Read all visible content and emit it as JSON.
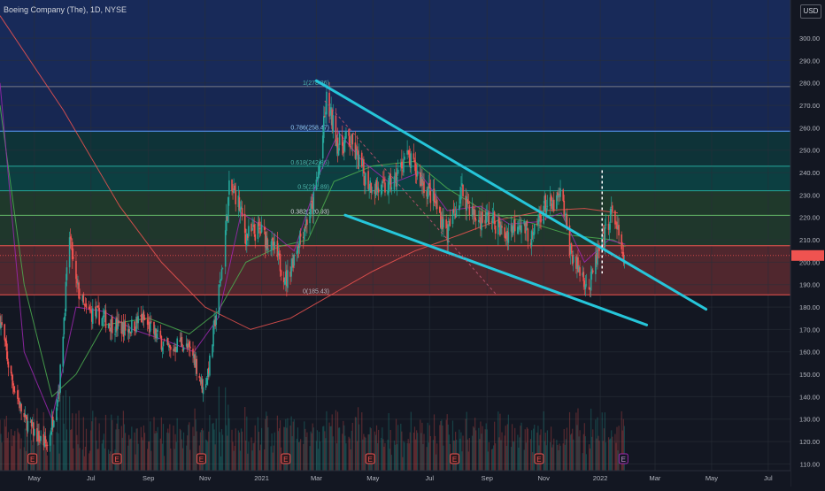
{
  "header": {
    "title": "Boeing Company (The), 1D, NYSE",
    "currency": "USD"
  },
  "colors": {
    "background": "#131722",
    "trendline": "#26c6da",
    "up": "#26a69a",
    "down": "#ef5350",
    "sma_long": "#ef5350",
    "sma_mid": "#4caf50",
    "sma_short": "#9c27b0",
    "price_badge": "#ef5350"
  },
  "chart_data": {
    "type": "candlestick",
    "symbol": "BA",
    "interval": "1D",
    "exchange": "NYSE",
    "x_tick_labels": [
      "May",
      "Jul",
      "Sep",
      "Nov",
      "2021",
      "Mar",
      "May",
      "Jul",
      "Sep",
      "Nov",
      "2022",
      "Mar",
      "May",
      "Jul"
    ],
    "y_tick_labels": [
      110,
      120,
      130,
      140,
      150,
      160,
      170,
      180,
      190,
      200,
      210,
      220,
      230,
      240,
      250,
      260,
      270,
      280,
      290,
      300
    ],
    "y_range": [
      107,
      317
    ],
    "x_range": [
      "2020-03-25",
      "2022-07-25"
    ],
    "last_price": 203.0,
    "fibonacci": [
      {
        "ratio": "1",
        "price": 278.36,
        "label": "1(278.36)"
      },
      {
        "ratio": "0.786",
        "price": 258.47,
        "label": "0.786(258.47)"
      },
      {
        "ratio": "0.618",
        "price": 242.86,
        "label": "0.618(242.86)"
      },
      {
        "ratio": "0.5",
        "price": 231.89,
        "label": "0.5(231.89)"
      },
      {
        "ratio": "0.382",
        "price": 220.93,
        "label": "0.382(220.93)"
      },
      {
        "ratio": "0.236",
        "price": 207.36,
        "label": ""
      },
      {
        "ratio": "0",
        "price": 185.43,
        "label": "0(185.43)"
      }
    ],
    "trendlines": [
      {
        "name": "upper",
        "from": {
          "date": "2021-03-01",
          "price": 281
        },
        "to": {
          "date": "2022-04-25",
          "price": 179
        }
      },
      {
        "name": "lower",
        "from": {
          "date": "2021-04-01",
          "price": 221
        },
        "to": {
          "date": "2022-02-20",
          "price": 172
        }
      }
    ],
    "price_path": [
      [
        "2020-03-25",
        175
      ],
      [
        "2020-04-05",
        150
      ],
      [
        "2020-04-20",
        130
      ],
      [
        "2020-05-05",
        122
      ],
      [
        "2020-05-15",
        118
      ],
      [
        "2020-05-28",
        145
      ],
      [
        "2020-06-08",
        212
      ],
      [
        "2020-06-15",
        190
      ],
      [
        "2020-06-25",
        178
      ],
      [
        "2020-07-10",
        176
      ],
      [
        "2020-07-25",
        172
      ],
      [
        "2020-08-10",
        170
      ],
      [
        "2020-08-25",
        175
      ],
      [
        "2020-09-10",
        167
      ],
      [
        "2020-09-25",
        160
      ],
      [
        "2020-10-05",
        165
      ],
      [
        "2020-10-20",
        158
      ],
      [
        "2020-10-30",
        143
      ],
      [
        "2020-11-06",
        155
      ],
      [
        "2020-11-20",
        200
      ],
      [
        "2020-11-27",
        232
      ],
      [
        "2020-12-05",
        230
      ],
      [
        "2020-12-15",
        212
      ],
      [
        "2020-12-31",
        214
      ],
      [
        "2021-01-15",
        205
      ],
      [
        "2021-01-28",
        192
      ],
      [
        "2021-02-10",
        210
      ],
      [
        "2021-02-25",
        225
      ],
      [
        "2021-03-05",
        245
      ],
      [
        "2021-03-12",
        272
      ],
      [
        "2021-03-25",
        252
      ],
      [
        "2021-04-05",
        255
      ],
      [
        "2021-04-25",
        236
      ],
      [
        "2021-05-10",
        232
      ],
      [
        "2021-05-25",
        236
      ],
      [
        "2021-06-05",
        248
      ],
      [
        "2021-06-20",
        238
      ],
      [
        "2021-07-05",
        228
      ],
      [
        "2021-07-20",
        213
      ],
      [
        "2021-08-05",
        232
      ],
      [
        "2021-08-20",
        219
      ],
      [
        "2021-09-05",
        220
      ],
      [
        "2021-09-20",
        212
      ],
      [
        "2021-10-05",
        219
      ],
      [
        "2021-10-20",
        210
      ],
      [
        "2021-11-01",
        226
      ],
      [
        "2021-11-10",
        224
      ],
      [
        "2021-11-20",
        230
      ],
      [
        "2021-11-30",
        205
      ],
      [
        "2021-12-07",
        198
      ],
      [
        "2021-12-15",
        193
      ],
      [
        "2021-12-20",
        188
      ],
      [
        "2021-12-28",
        202
      ],
      [
        "2022-01-05",
        210
      ],
      [
        "2022-01-12",
        222
      ],
      [
        "2022-01-18",
        218
      ],
      [
        "2022-01-25",
        200
      ],
      [
        "2022-01-28",
        203
      ]
    ],
    "sma_long": [
      [
        "2020-03-25",
        310
      ],
      [
        "2020-06-01",
        268
      ],
      [
        "2020-08-01",
        225
      ],
      [
        "2020-09-15",
        200
      ],
      [
        "2020-11-01",
        180
      ],
      [
        "2020-12-20",
        170
      ],
      [
        "2021-02-01",
        175
      ],
      [
        "2021-03-15",
        185
      ],
      [
        "2021-05-01",
        196
      ],
      [
        "2021-06-15",
        205
      ],
      [
        "2021-08-01",
        212
      ],
      [
        "2021-09-15",
        219
      ],
      [
        "2021-11-01",
        223
      ],
      [
        "2021-12-15",
        224
      ],
      [
        "2022-01-20",
        222
      ]
    ],
    "sma_mid": [
      [
        "2020-03-25",
        270
      ],
      [
        "2020-04-20",
        190
      ],
      [
        "2020-05-20",
        140
      ],
      [
        "2020-06-15",
        150
      ],
      [
        "2020-07-15",
        172
      ],
      [
        "2020-09-01",
        175
      ],
      [
        "2020-10-15",
        168
      ],
      [
        "2020-11-15",
        178
      ],
      [
        "2020-12-15",
        200
      ],
      [
        "2021-01-20",
        207
      ],
      [
        "2021-02-20",
        210
      ],
      [
        "2021-03-20",
        236
      ],
      [
        "2021-05-01",
        243
      ],
      [
        "2021-06-15",
        245
      ],
      [
        "2021-07-20",
        233
      ],
      [
        "2021-09-01",
        222
      ],
      [
        "2021-10-15",
        218
      ],
      [
        "2021-12-01",
        212
      ],
      [
        "2022-01-15",
        210
      ],
      [
        "2022-01-28",
        207
      ]
    ],
    "sma_short": [
      [
        "2020-03-25",
        280
      ],
      [
        "2020-04-20",
        160
      ],
      [
        "2020-05-20",
        130
      ],
      [
        "2020-06-15",
        180
      ],
      [
        "2020-07-15",
        178
      ],
      [
        "2020-08-15",
        170
      ],
      [
        "2020-09-20",
        165
      ],
      [
        "2020-10-20",
        160
      ],
      [
        "2020-11-15",
        175
      ],
      [
        "2020-12-10",
        222
      ],
      [
        "2021-01-10",
        214
      ],
      [
        "2021-02-05",
        205
      ],
      [
        "2021-03-05",
        240
      ],
      [
        "2021-03-25",
        258
      ],
      [
        "2021-04-20",
        245
      ],
      [
        "2021-05-20",
        235
      ],
      [
        "2021-06-20",
        240
      ],
      [
        "2021-07-20",
        223
      ],
      [
        "2021-08-25",
        225
      ],
      [
        "2021-09-25",
        217
      ],
      [
        "2021-10-25",
        218
      ],
      [
        "2021-11-20",
        222
      ],
      [
        "2021-12-15",
        200
      ],
      [
        "2022-01-10",
        210
      ],
      [
        "2022-01-28",
        208
      ]
    ],
    "earnings_markers": [
      {
        "date": "2020-04-29",
        "label": "E"
      },
      {
        "date": "2020-07-29",
        "label": "E"
      },
      {
        "date": "2020-10-28",
        "label": "E"
      },
      {
        "date": "2021-01-27",
        "label": "E"
      },
      {
        "date": "2021-04-28",
        "label": "E"
      },
      {
        "date": "2021-07-28",
        "label": "E"
      },
      {
        "date": "2021-10-27",
        "label": "E"
      },
      {
        "date": "2022-01-26",
        "label": "E"
      }
    ],
    "grid": true,
    "axis_position": "right"
  }
}
